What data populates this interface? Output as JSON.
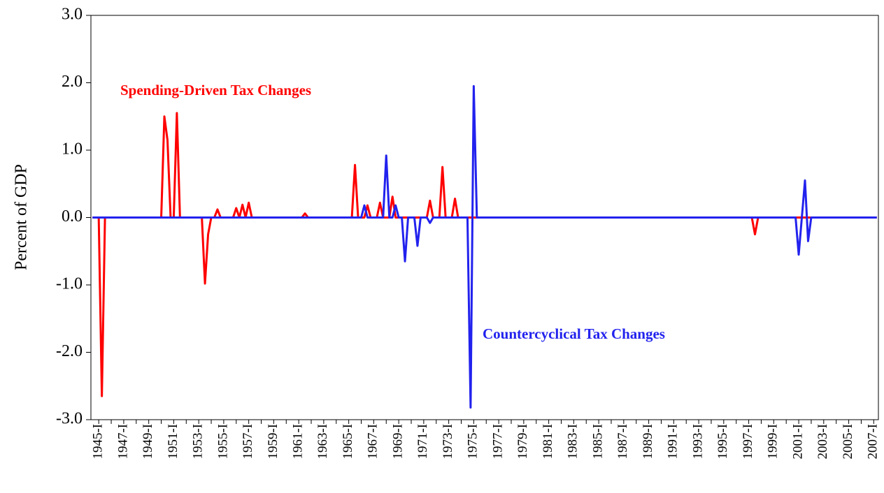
{
  "chart_data": {
    "type": "line",
    "y_label": "Percent of GDP",
    "ylim": [
      -3,
      3
    ],
    "yticks": [
      {
        "value": -3,
        "label": "-3.0"
      },
      {
        "value": -2,
        "label": "-2.0"
      },
      {
        "value": -1,
        "label": "-1.0"
      },
      {
        "value": 0,
        "label": "0.0"
      },
      {
        "value": 1,
        "label": "1.0"
      },
      {
        "value": 2,
        "label": "2.0"
      },
      {
        "value": 3,
        "label": "3.0"
      }
    ],
    "categories": [
      null,
      null,
      "1945-I",
      null,
      null,
      null,
      null,
      null,
      null,
      null,
      "1947-I",
      null,
      null,
      null,
      null,
      null,
      null,
      null,
      "1949-I",
      null,
      null,
      null,
      null,
      null,
      null,
      null,
      "1951-I",
      null,
      null,
      null,
      null,
      null,
      null,
      null,
      "1953-I",
      null,
      null,
      null,
      null,
      null,
      null,
      null,
      "1955-I",
      null,
      null,
      null,
      null,
      null,
      null,
      null,
      "1957-I",
      null,
      null,
      null,
      null,
      null,
      null,
      null,
      "1959-I",
      null,
      null,
      null,
      null,
      null,
      null,
      null,
      "1961-I",
      null,
      null,
      null,
      null,
      null,
      null,
      null,
      "1963-I",
      null,
      null,
      null,
      null,
      null,
      null,
      null,
      "1965-I",
      null,
      null,
      null,
      null,
      null,
      null,
      null,
      "1967-I",
      null,
      null,
      null,
      null,
      null,
      null,
      null,
      "1969-I",
      null,
      null,
      null,
      null,
      null,
      null,
      null,
      "1971-I",
      null,
      null,
      null,
      null,
      null,
      null,
      null,
      "1973-I",
      null,
      null,
      null,
      null,
      null,
      null,
      null,
      "1975-I",
      null,
      null,
      null,
      null,
      null,
      null,
      null,
      "1977-I",
      null,
      null,
      null,
      null,
      null,
      null,
      null,
      "1979-I",
      null,
      null,
      null,
      null,
      null,
      null,
      null,
      "1981-I",
      null,
      null,
      null,
      null,
      null,
      null,
      null,
      "1983-I",
      null,
      null,
      null,
      null,
      null,
      null,
      null,
      "1985-I",
      null,
      null,
      null,
      null,
      null,
      null,
      null,
      "1987-I",
      null,
      null,
      null,
      null,
      null,
      null,
      null,
      "1989-I",
      null,
      null,
      null,
      null,
      null,
      null,
      null,
      "1991-I",
      null,
      null,
      null,
      null,
      null,
      null,
      null,
      "1993-I",
      null,
      null,
      null,
      null,
      null,
      null,
      null,
      "1995-I",
      null,
      null,
      null,
      null,
      null,
      null,
      null,
      "1997-I",
      null,
      null,
      null,
      null,
      null,
      null,
      null,
      "1999-I",
      null,
      null,
      null,
      null,
      null,
      null,
      null,
      "2001-I",
      null,
      null,
      null,
      null,
      null,
      null,
      null,
      "2003-I",
      null,
      null,
      null,
      null,
      null,
      null,
      null,
      "2005-I",
      null,
      null,
      null,
      null,
      null,
      null,
      null,
      "2007-I",
      null
    ],
    "series": [
      {
        "name": "Spending-Driven Tax Changes",
        "color": "#ff0000",
        "values": [
          0,
          0,
          0,
          -2.65,
          0,
          0,
          0,
          0,
          0,
          0,
          0,
          0,
          0,
          0,
          0,
          0,
          0,
          0,
          0,
          0,
          0,
          0,
          0,
          1.5,
          1.15,
          0,
          0,
          1.55,
          0,
          0,
          0,
          0,
          0,
          0,
          0,
          0,
          -0.98,
          -0.25,
          0,
          0,
          0.12,
          0,
          0,
          0,
          0,
          0,
          0.14,
          0,
          0.19,
          0,
          0.22,
          0,
          0,
          0,
          0,
          0,
          0,
          0,
          0,
          0,
          0,
          0,
          0,
          0,
          0,
          0,
          0,
          0,
          0.06,
          0,
          0,
          0,
          0,
          0,
          0,
          0,
          0,
          0,
          0,
          0,
          0,
          0,
          0,
          0,
          0.78,
          0,
          0,
          0,
          0.18,
          0,
          0,
          0,
          0.22,
          0,
          0,
          0,
          0.31,
          0,
          0,
          0,
          0,
          0,
          0,
          0,
          0,
          0,
          0,
          0,
          0.25,
          0,
          0,
          0,
          0.75,
          0,
          0,
          0,
          0.28,
          0,
          0,
          0,
          0,
          0,
          0,
          0,
          0,
          0,
          0,
          0,
          0,
          0,
          0,
          0,
          0,
          0,
          0,
          0,
          0,
          0,
          0,
          0,
          0,
          0,
          0,
          0,
          0,
          0,
          0,
          0,
          0,
          0,
          0,
          0,
          0,
          0,
          0,
          0,
          0,
          0,
          0,
          0,
          0,
          0,
          0,
          0,
          0,
          0,
          0,
          0,
          0,
          0,
          0,
          0,
          0,
          0,
          0,
          0,
          0,
          0,
          0,
          0,
          0,
          0,
          0,
          0,
          0,
          0,
          0,
          0,
          0,
          0,
          0,
          0,
          0,
          0,
          0,
          0,
          0,
          0,
          0,
          0,
          0,
          0,
          0,
          0,
          0,
          0,
          0,
          0,
          0,
          0,
          0,
          0,
          -0.25,
          0,
          0,
          0,
          0,
          0,
          0,
          0,
          0,
          0,
          0,
          0,
          0,
          0,
          0,
          0,
          0,
          0,
          0,
          0,
          0,
          0,
          0,
          0,
          0,
          0,
          0,
          0,
          0,
          0,
          0,
          0,
          0,
          0,
          0,
          0,
          0,
          0,
          0,
          0
        ]
      },
      {
        "name": "Countercyclical Tax Changes",
        "color": "#2222ee",
        "values": [
          0,
          0,
          0,
          0,
          0,
          0,
          0,
          0,
          0,
          0,
          0,
          0,
          0,
          0,
          0,
          0,
          0,
          0,
          0,
          0,
          0,
          0,
          0,
          0,
          0,
          0,
          0,
          0,
          0,
          0,
          0,
          0,
          0,
          0,
          0,
          0,
          0,
          0,
          0,
          0,
          0,
          0,
          0,
          0,
          0,
          0,
          0,
          0,
          0,
          0,
          0,
          0,
          0,
          0,
          0,
          0,
          0,
          0,
          0,
          0,
          0,
          0,
          0,
          0,
          0,
          0,
          0,
          0,
          0,
          0,
          0,
          0,
          0,
          0,
          0,
          0,
          0,
          0,
          0,
          0,
          0,
          0,
          0,
          0,
          0,
          0,
          0,
          0.18,
          0,
          0,
          0,
          0,
          0,
          0,
          0.92,
          0,
          0,
          0.18,
          0,
          0,
          -0.65,
          0,
          0,
          0,
          -0.42,
          0,
          0,
          0,
          -0.08,
          0,
          0,
          0,
          0,
          0,
          0,
          0,
          0,
          0,
          0,
          0,
          0,
          -2.82,
          1.95,
          0,
          0,
          0,
          0,
          0,
          0,
          0,
          0,
          0,
          0,
          0,
          0,
          0,
          0,
          0,
          0,
          0,
          0,
          0,
          0,
          0,
          0,
          0,
          0,
          0,
          0,
          0,
          0,
          0,
          0,
          0,
          0,
          0,
          0,
          0,
          0,
          0,
          0,
          0,
          0,
          0,
          0,
          0,
          0,
          0,
          0,
          0,
          0,
          0,
          0,
          0,
          0,
          0,
          0,
          0,
          0,
          0,
          0,
          0,
          0,
          0,
          0,
          0,
          0,
          0,
          0,
          0,
          0,
          0,
          0,
          0,
          0,
          0,
          0,
          0,
          0,
          0,
          0,
          0,
          0,
          0,
          0,
          0,
          0,
          0,
          0,
          0,
          0,
          0,
          0,
          0,
          0,
          0,
          0,
          0,
          0,
          0,
          0,
          0,
          0,
          0,
          0,
          0,
          -0.55,
          0,
          0.55,
          -0.35,
          0,
          0,
          0,
          0,
          0,
          0,
          0,
          0,
          0,
          0,
          0,
          0,
          0,
          0,
          0,
          0,
          0,
          0,
          0,
          0,
          0,
          0
        ]
      }
    ]
  }
}
